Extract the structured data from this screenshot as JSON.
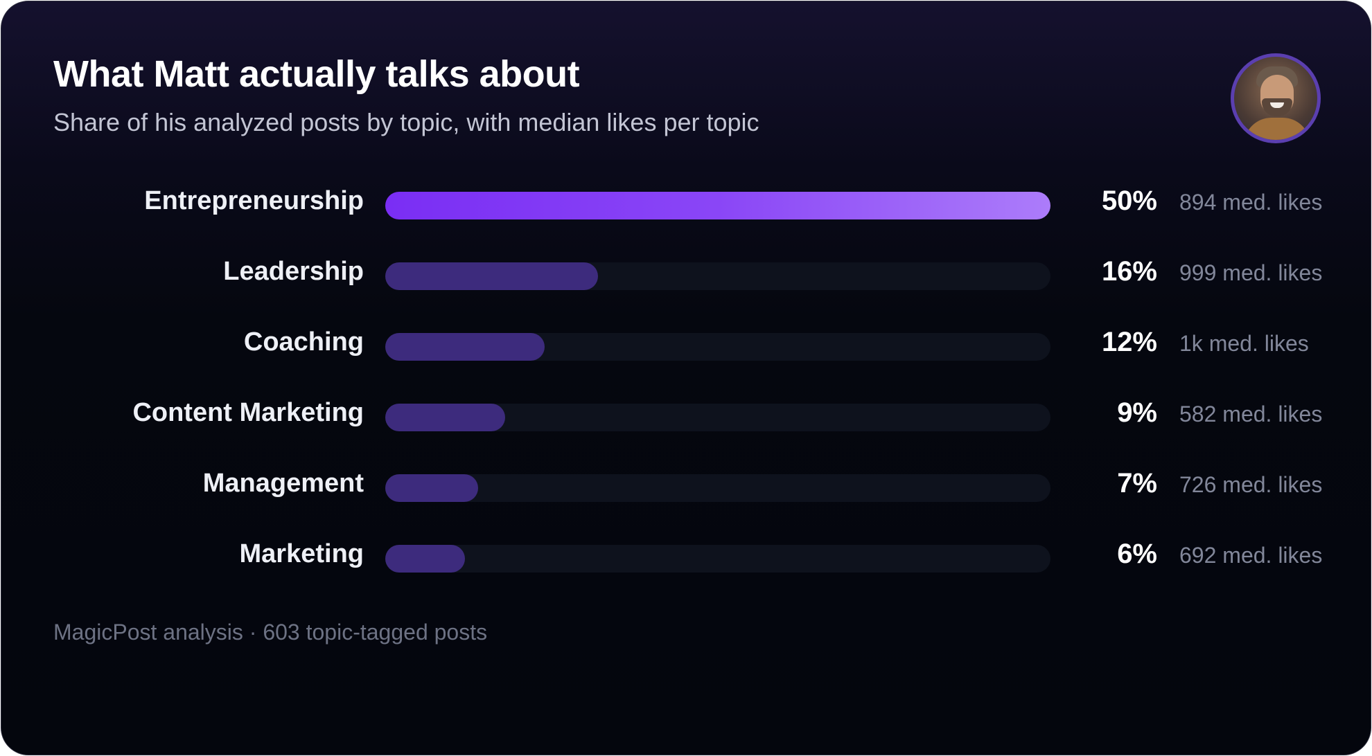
{
  "header": {
    "title": "What Matt actually talks about",
    "subtitle": "Share of his analyzed posts by topic, with median likes per topic"
  },
  "colors": {
    "top_bar_start": "#7a2ef4",
    "top_bar_end": "#ac7cfa",
    "bar": "#3d2b7d",
    "track": "#0e121d",
    "avatar_ring": "#5b3fb0"
  },
  "chart_data": {
    "type": "bar",
    "orientation": "horizontal",
    "categories": [
      "Entrepreneurship",
      "Leadership",
      "Coaching",
      "Content Marketing",
      "Management",
      "Marketing"
    ],
    "values": [
      50,
      16,
      12,
      9,
      7,
      6
    ],
    "value_labels": [
      "50%",
      "16%",
      "12%",
      "9%",
      "7%",
      "6%"
    ],
    "median_likes": [
      894,
      999,
      1000,
      582,
      726,
      692
    ],
    "median_likes_labels": [
      "894 med. likes",
      "999 med. likes",
      "1k med. likes",
      "582 med. likes",
      "726 med. likes",
      "692 med. likes"
    ],
    "xlim": [
      0,
      50
    ],
    "grid": false,
    "legend": "none"
  },
  "footer": {
    "note": "MagicPost analysis · 603 topic-tagged posts"
  }
}
